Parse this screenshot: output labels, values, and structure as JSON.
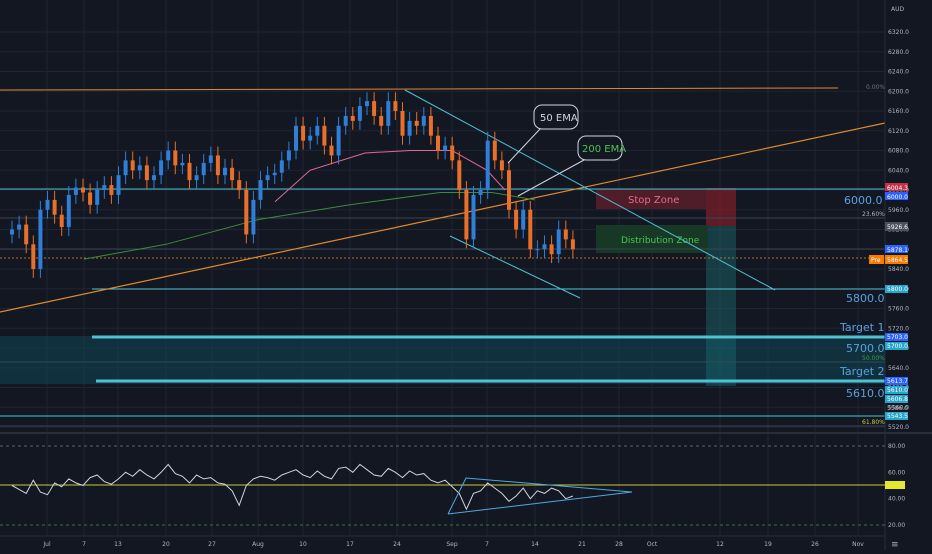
{
  "header": {
    "currency": "AUD",
    "menu_glyph": "≡"
  },
  "colors": {
    "background": "#131722",
    "grid": "#1f2433",
    "up": "#2f7fd8",
    "down": "#e8702a",
    "ema50": "#e06a98",
    "ema200": "#3f8a3a",
    "orange_line": "#e08a2a",
    "cyan_line": "#4fc1d3",
    "rsi": "#d1d4dc",
    "rsi_level": "#c8c83c"
  },
  "annotations": {
    "ema50": "50 EMA",
    "ema200": "200 EMA",
    "stop_zone": "Stop Zone",
    "distribution_zone": "Distribution Zone",
    "fib_0": "0.00%",
    "fib_236": "23.60%",
    "fib_50": "50.00%",
    "fib_618": "61.80%"
  },
  "levels": {
    "l6000": "6000.0",
    "l5800": "5800.0",
    "l5700": "5700.0",
    "l5610": "5610.0",
    "target1": "Target 1",
    "target2": "Target 2"
  },
  "price_tags": {
    "t6004": "6004.3",
    "t6000": "6000.0",
    "t5926": "5926.6",
    "t5878": "5878.1",
    "t5864": "5864.5",
    "pre": "Pre",
    "t5800": "5800.0",
    "t5703": "5703.0",
    "t5700": "5700.0",
    "t5613": "5613.7",
    "t5610": "5610.0",
    "t5606": "5606.8",
    "t5586": "5586.0",
    "t5543": "5543.5"
  },
  "chart_data": {
    "type": "line",
    "symbol_currency": "AUD",
    "price_axis": {
      "ticks": [
        "6320.0",
        "6280.0",
        "6240.0",
        "6200.0",
        "6160.0",
        "6120.0",
        "6080.0",
        "6040.0",
        "6000.0",
        "5960.0",
        "5920.0",
        "5880.0",
        "5840.0",
        "5800.0",
        "5760.0",
        "5720.0",
        "5680.0",
        "5640.0",
        "5600.0",
        "5560.0",
        "5520.0"
      ],
      "range": [
        5500,
        6355
      ]
    },
    "time_axis": {
      "ticks": [
        "Jul",
        "7",
        "13",
        "20",
        "27",
        "Aug",
        "10",
        "17",
        "24",
        "Sep",
        "7",
        "14",
        "21",
        "28",
        "Oct",
        "12",
        "19",
        "26",
        "Nov"
      ]
    },
    "series": [
      {
        "name": "50 EMA",
        "x": [
          "Aug 6",
          "Aug 13",
          "Aug 20",
          "Aug 27",
          "Sep 1",
          "Sep 7",
          "Sep 11"
        ],
        "values": [
          5976,
          6040,
          6075,
          6080,
          6080,
          6040,
          6000
        ]
      },
      {
        "name": "200 EMA",
        "x": [
          "Jul 6",
          "Jul 20",
          "Aug 3",
          "Aug 17",
          "Aug 31",
          "Sep 8",
          "Sep 14"
        ],
        "values": [
          5860,
          5890,
          5940,
          5970,
          5995,
          5995,
          5980
        ]
      }
    ],
    "closes": [
      5920,
      5930,
      5890,
      5840,
      5960,
      5980,
      5950,
      5925,
      5990,
      6005,
      5995,
      5970,
      6000,
      6010,
      5990,
      6030,
      6060,
      6040,
      6050,
      6020,
      6030,
      6060,
      6080,
      6050,
      6055,
      6020,
      6030,
      6055,
      6070,
      6030,
      6045,
      6020,
      6000,
      5910,
      5980,
      6020,
      6030,
      6035,
      6060,
      6080,
      6130,
      6100,
      6110,
      6130,
      6090,
      6070,
      6130,
      6150,
      6140,
      6170,
      6180,
      6150,
      6130,
      6180,
      6160,
      6110,
      6140,
      6130,
      6150,
      6110,
      6080,
      6090,
      6060,
      6000,
      5900,
      5990,
      6000,
      6100,
      6060,
      6040,
      5960,
      5920,
      5960,
      5880,
      5880,
      5890,
      5870,
      5920,
      5900,
      5880
    ],
    "levels": [
      6000,
      5800,
      5700,
      5610
    ],
    "targets": [
      "Target 1",
      "Target 2"
    ],
    "zones": [
      "Stop Zone",
      "Distribution Zone"
    ],
    "fibonacci": [
      "0.00%",
      "23.60%",
      "50.00%",
      "61.80%"
    ],
    "rsi": {
      "ticks": [
        "80.00",
        "60.00",
        "50.00",
        "40.00",
        "20.00"
      ],
      "range": [
        15,
        90
      ],
      "overbought": 80,
      "oversold": 20,
      "midline": 50,
      "values": [
        50,
        47,
        44,
        54,
        45,
        43,
        52,
        49,
        55,
        52,
        50,
        56,
        58,
        53,
        51,
        55,
        60,
        57,
        62,
        58,
        55,
        60,
        66,
        59,
        57,
        52,
        58,
        55,
        56,
        52,
        51,
        46,
        35,
        50,
        55,
        57,
        56,
        54,
        58,
        60,
        62,
        58,
        56,
        61,
        57,
        55,
        63,
        64,
        60,
        66,
        62,
        58,
        57,
        63,
        60,
        56,
        61,
        58,
        59,
        54,
        52,
        54,
        49,
        44,
        32,
        44,
        46,
        52,
        48,
        44,
        38,
        42,
        48,
        40,
        46,
        44,
        48,
        46,
        40,
        42
      ]
    }
  }
}
